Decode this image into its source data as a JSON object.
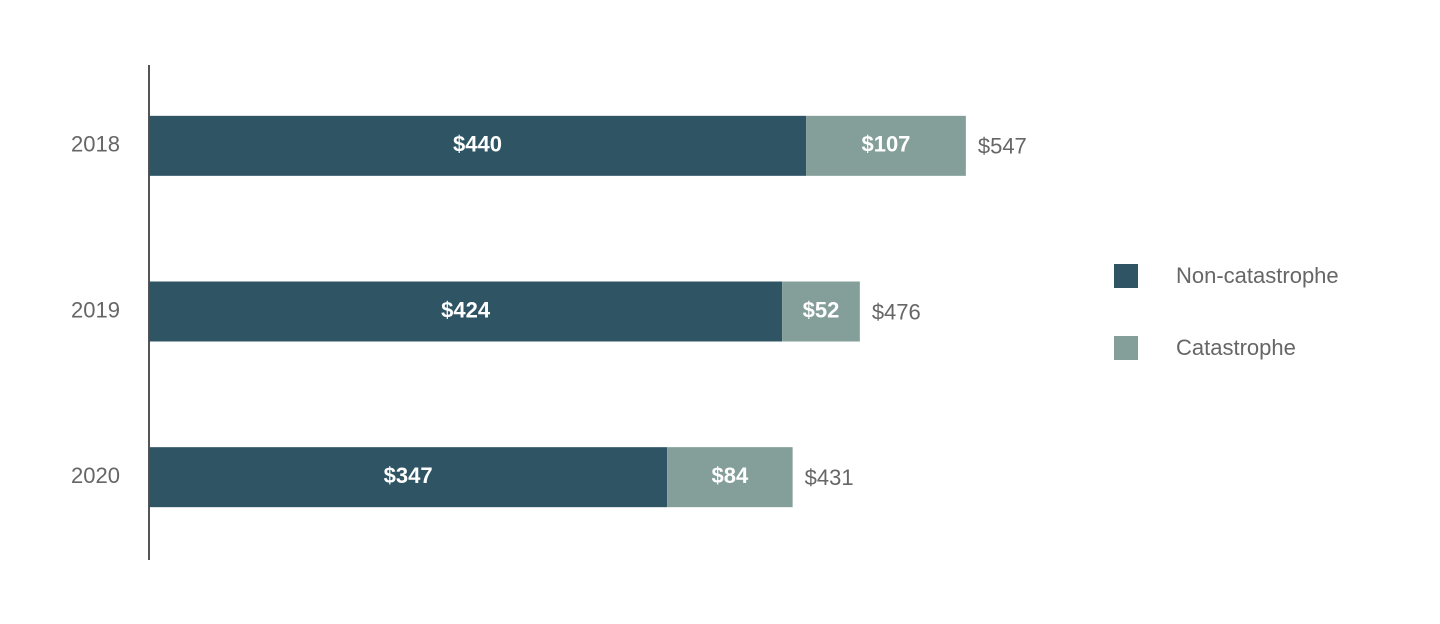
{
  "chart_data": {
    "type": "stacked-bar-horizontal",
    "categories": [
      "2018",
      "2019",
      "2020"
    ],
    "series": [
      {
        "name": "Non-catastrophe",
        "color": "#2f5564",
        "values": [
          440,
          424,
          347
        ],
        "value_labels": [
          "$440",
          "$424",
          "$347"
        ]
      },
      {
        "name": "Catastrophe",
        "color": "#849e9a",
        "values": [
          107,
          52,
          84
        ],
        "value_labels": [
          "$107",
          "$52",
          "$84"
        ]
      }
    ],
    "totals": {
      "values": [
        547,
        476,
        431
      ],
      "value_labels": [
        "$547",
        "$476",
        "$431"
      ]
    },
    "xlim": [
      0,
      600
    ],
    "legend": "right"
  }
}
